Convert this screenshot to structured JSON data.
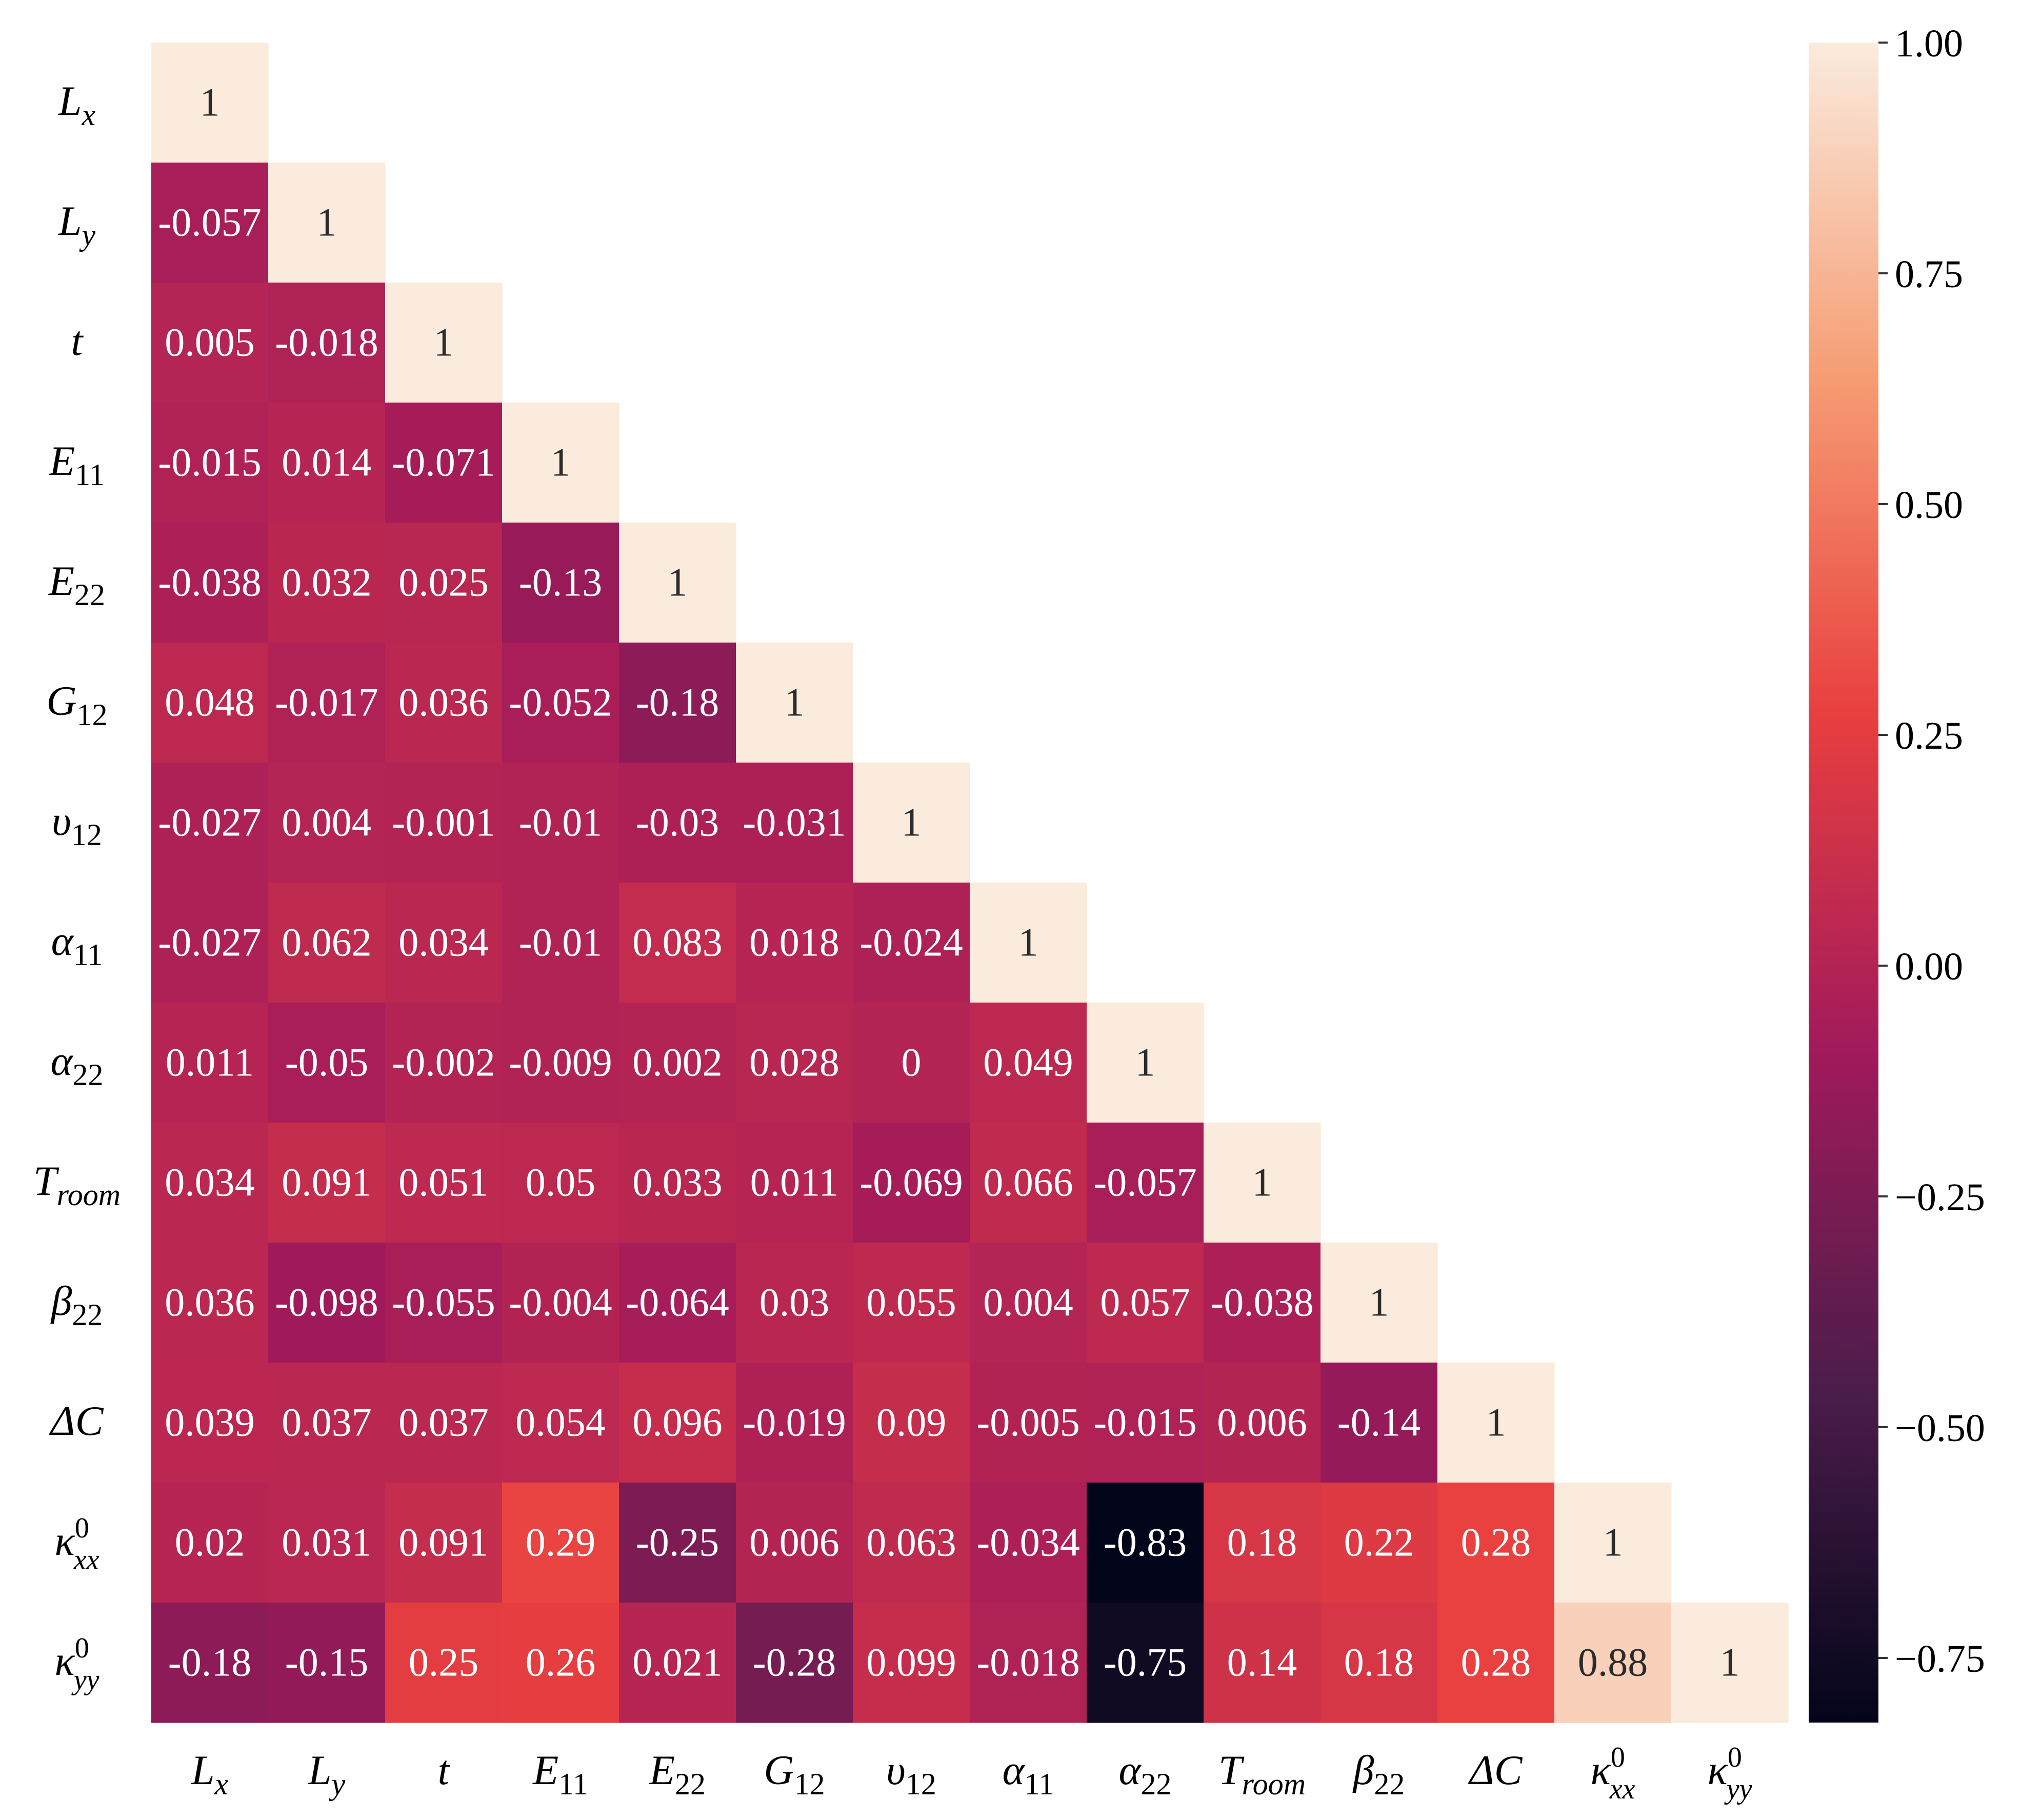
{
  "chart_data": {
    "type": "heatmap",
    "title": "",
    "variables": [
      {
        "id": "Lx",
        "base": "L",
        "sub": "x",
        "sup": ""
      },
      {
        "id": "Ly",
        "base": "L",
        "sub": "y",
        "sup": ""
      },
      {
        "id": "t",
        "base": "t",
        "sub": "",
        "sup": ""
      },
      {
        "id": "E11",
        "base": "E",
        "sub": "11",
        "sup": ""
      },
      {
        "id": "E22",
        "base": "E",
        "sub": "22",
        "sup": ""
      },
      {
        "id": "G12",
        "base": "G",
        "sub": "12",
        "sup": ""
      },
      {
        "id": "v12",
        "base": "υ",
        "sub": "12",
        "sup": ""
      },
      {
        "id": "a11",
        "base": "α",
        "sub": "11",
        "sup": ""
      },
      {
        "id": "a22",
        "base": "α",
        "sub": "22",
        "sup": ""
      },
      {
        "id": "Troom",
        "base": "T",
        "sub": "room",
        "sup": ""
      },
      {
        "id": "b22",
        "base": "β",
        "sub": "22",
        "sup": ""
      },
      {
        "id": "dC",
        "base": "ΔC",
        "sub": "",
        "sup": ""
      },
      {
        "id": "kxx",
        "base": "κ",
        "sub": "xx",
        "sup": "0"
      },
      {
        "id": "kyy",
        "base": "κ",
        "sub": "yy",
        "sup": "0"
      }
    ],
    "rows": [
      [
        "1"
      ],
      [
        "-0.057",
        "1"
      ],
      [
        "0.005",
        "-0.018",
        "1"
      ],
      [
        "-0.015",
        "0.014",
        "-0.071",
        "1"
      ],
      [
        "-0.038",
        "0.032",
        "0.025",
        "-0.13",
        "1"
      ],
      [
        "0.048",
        "-0.017",
        "0.036",
        "-0.052",
        "-0.18",
        "1"
      ],
      [
        "-0.027",
        "0.004",
        "-0.001",
        "-0.01",
        "-0.03",
        "-0.031",
        "1"
      ],
      [
        "-0.027",
        "0.062",
        "0.034",
        "-0.01",
        "0.083",
        "0.018",
        "-0.024",
        "1"
      ],
      [
        "0.011",
        "-0.05",
        "-0.002",
        "-0.009",
        "0.002",
        "0.028",
        "0",
        "0.049",
        "1"
      ],
      [
        "0.034",
        "0.091",
        "0.051",
        "0.05",
        "0.033",
        "0.011",
        "-0.069",
        "0.066",
        "-0.057",
        "1"
      ],
      [
        "0.036",
        "-0.098",
        "-0.055",
        "-0.004",
        "-0.064",
        "0.03",
        "0.055",
        "0.004",
        "0.057",
        "-0.038",
        "1"
      ],
      [
        "0.039",
        "0.037",
        "0.037",
        "0.054",
        "0.096",
        "-0.019",
        "0.09",
        "-0.005",
        "-0.015",
        "0.006",
        "-0.14",
        "1"
      ],
      [
        "0.02",
        "0.031",
        "0.091",
        "0.29",
        "-0.25",
        "0.006",
        "0.063",
        "-0.034",
        "-0.83",
        "0.18",
        "0.22",
        "0.28",
        "1"
      ],
      [
        "-0.18",
        "-0.15",
        "0.25",
        "0.26",
        "0.021",
        "-0.28",
        "0.099",
        "-0.018",
        "-0.75",
        "0.14",
        "0.18",
        "0.28",
        "0.88",
        "1"
      ]
    ],
    "colorbar": {
      "min": -0.82,
      "max": 1.0,
      "ticks": [
        1.0,
        0.75,
        0.5,
        0.25,
        0.0,
        -0.25,
        -0.5,
        -0.75
      ],
      "tick_labels": [
        "1.00",
        "0.75",
        "0.50",
        "0.25",
        "0.00",
        "−0.25",
        "−0.50",
        "−0.75"
      ],
      "colormap_stops": [
        "#03051a",
        "#4c1d4b",
        "#a11a5b",
        "#e83f3f",
        "#f69c73",
        "#faebdd"
      ]
    }
  }
}
